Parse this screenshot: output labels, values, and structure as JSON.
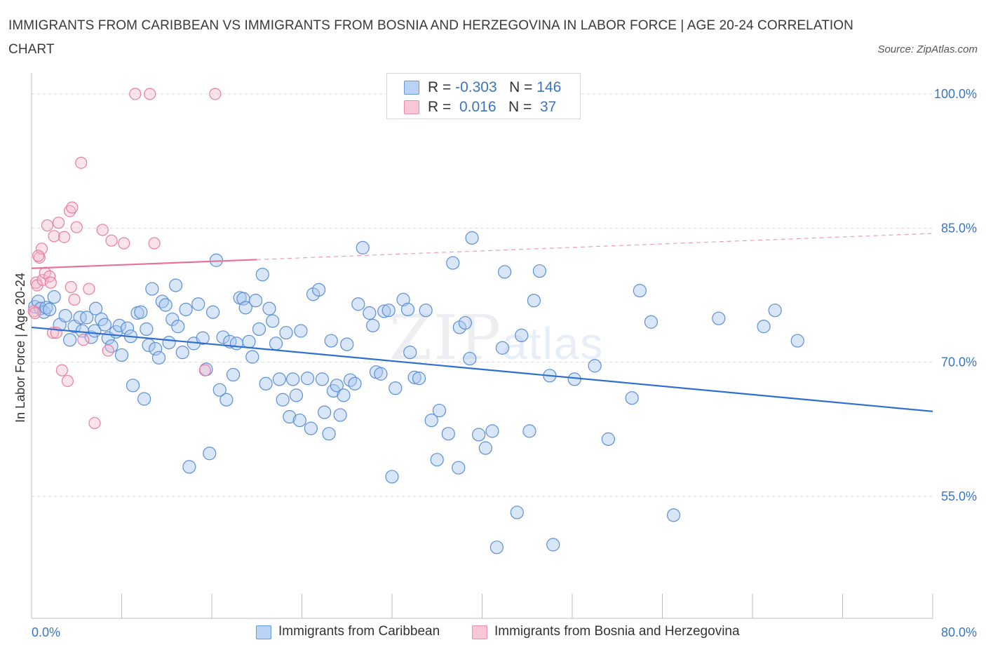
{
  "title": "IMMIGRANTS FROM CARIBBEAN VS IMMIGRANTS FROM BOSNIA AND HERZEGOVINA IN LABOR FORCE | AGE 20-24 CORRELATION CHART",
  "source": "Source: ZipAtlas.com",
  "watermark": {
    "zip": "ZIP",
    "atlas": "atlas"
  },
  "legend_top": {
    "rows": [
      {
        "r_label": "R =",
        "r_value": "-0.303",
        "n_label": "N =",
        "n_value": "146"
      },
      {
        "r_label": "R =",
        "r_value": " 0.016",
        "n_label": "N =",
        "n_value": " 37"
      }
    ]
  },
  "legend_bottom": {
    "items": [
      {
        "label": "Immigrants from Caribbean"
      },
      {
        "label": "Immigrants from Bosnia and Herzegovina"
      }
    ]
  },
  "colors": {
    "blue_fill": "#a9c8f0",
    "blue_stroke": "#5b8fd6",
    "blue_line": "#2f6fcf",
    "pink_fill": "#f5b8cb",
    "pink_stroke": "#e87ea0",
    "pink_line": "#e8739a",
    "grid": "#d9d9d9",
    "tick_text": "#3a75c4"
  },
  "chart_data": {
    "type": "scatter",
    "title": "IMMIGRANTS FROM CARIBBEAN VS IMMIGRANTS FROM BOSNIA AND HERZEGOVINA IN LABOR FORCE | AGE 20-24 CORRELATION CHART",
    "xlabel": "",
    "ylabel": "In Labor Force | Age 20-24",
    "xlim": [
      0,
      80
    ],
    "ylim": [
      40,
      100
    ],
    "x_tick_labels": [
      "0.0%",
      "80.0%"
    ],
    "y_ticks": [
      55,
      70,
      85,
      100
    ],
    "y_tick_labels": [
      "55.0%",
      "70.0%",
      "85.0%",
      "100.0%"
    ],
    "grid": true,
    "legend_position": "top-center",
    "series": [
      {
        "name": "Immigrants from Caribbean",
        "color": "#a9c8f0",
        "R": -0.303,
        "N": 146,
        "trend": {
          "x": [
            0,
            80
          ],
          "y": [
            73.9,
            64.5
          ],
          "dashed_from": null
        },
        "points": [
          [
            0.3,
            76.2
          ],
          [
            0.6,
            76.8
          ],
          [
            0.8,
            76.0
          ],
          [
            1.1,
            75.6
          ],
          [
            1.3,
            76.1
          ],
          [
            1.6,
            75.9
          ],
          [
            2.0,
            77.3
          ],
          [
            2.5,
            74.2
          ],
          [
            3.0,
            75.2
          ],
          [
            3.4,
            72.5
          ],
          [
            3.8,
            74.0
          ],
          [
            4.3,
            75.0
          ],
          [
            4.5,
            73.5
          ],
          [
            4.9,
            75.0
          ],
          [
            5.3,
            72.8
          ],
          [
            5.6,
            73.5
          ],
          [
            5.7,
            76.0
          ],
          [
            6.2,
            74.8
          ],
          [
            6.5,
            74.2
          ],
          [
            6.8,
            72.7
          ],
          [
            7.1,
            71.8
          ],
          [
            7.5,
            73.4
          ],
          [
            7.8,
            74.1
          ],
          [
            8.0,
            70.8
          ],
          [
            8.5,
            73.8
          ],
          [
            8.8,
            72.9
          ],
          [
            9.0,
            67.4
          ],
          [
            9.4,
            75.5
          ],
          [
            9.7,
            75.6
          ],
          [
            10.0,
            65.9
          ],
          [
            10.2,
            73.7
          ],
          [
            10.4,
            71.9
          ],
          [
            10.7,
            78.2
          ],
          [
            11.0,
            71.5
          ],
          [
            11.3,
            70.5
          ],
          [
            11.6,
            76.8
          ],
          [
            11.9,
            76.4
          ],
          [
            12.2,
            72.2
          ],
          [
            12.5,
            74.8
          ],
          [
            12.8,
            78.6
          ],
          [
            13.0,
            74.0
          ],
          [
            13.4,
            71.1
          ],
          [
            13.7,
            75.9
          ],
          [
            14.0,
            58.3
          ],
          [
            14.4,
            72.1
          ],
          [
            14.8,
            76.5
          ],
          [
            15.2,
            72.7
          ],
          [
            15.5,
            69.2
          ],
          [
            15.8,
            59.8
          ],
          [
            16.1,
            75.6
          ],
          [
            16.4,
            81.4
          ],
          [
            16.7,
            66.9
          ],
          [
            17.0,
            72.8
          ],
          [
            17.3,
            65.8
          ],
          [
            17.6,
            72.3
          ],
          [
            17.9,
            68.6
          ],
          [
            18.2,
            72.1
          ],
          [
            18.5,
            77.2
          ],
          [
            18.8,
            77.1
          ],
          [
            19.0,
            76.1
          ],
          [
            19.3,
            72.3
          ],
          [
            19.6,
            70.6
          ],
          [
            19.9,
            76.9
          ],
          [
            20.2,
            73.7
          ],
          [
            20.5,
            79.8
          ],
          [
            20.8,
            67.6
          ],
          [
            21.1,
            76.0
          ],
          [
            21.4,
            74.6
          ],
          [
            21.7,
            72.1
          ],
          [
            22.0,
            68.1
          ],
          [
            22.3,
            65.8
          ],
          [
            22.6,
            73.3
          ],
          [
            22.9,
            63.9
          ],
          [
            23.2,
            68.1
          ],
          [
            23.5,
            66.3
          ],
          [
            23.8,
            63.5
          ],
          [
            23.9,
            73.5
          ],
          [
            24.5,
            68.2
          ],
          [
            24.8,
            62.6
          ],
          [
            25.0,
            77.6
          ],
          [
            25.5,
            78.1
          ],
          [
            25.8,
            68.1
          ],
          [
            26.0,
            64.4
          ],
          [
            26.4,
            62.0
          ],
          [
            26.6,
            72.4
          ],
          [
            26.8,
            66.8
          ],
          [
            27.1,
            67.4
          ],
          [
            27.4,
            64.1
          ],
          [
            27.7,
            66.3
          ],
          [
            28.0,
            72.0
          ],
          [
            28.3,
            68.0
          ],
          [
            28.7,
            67.6
          ],
          [
            29.0,
            76.5
          ],
          [
            29.4,
            82.8
          ],
          [
            30.0,
            75.5
          ],
          [
            30.3,
            74.1
          ],
          [
            30.6,
            68.9
          ],
          [
            31.0,
            68.7
          ],
          [
            31.3,
            75.7
          ],
          [
            31.7,
            75.8
          ],
          [
            32.0,
            57.2
          ],
          [
            32.3,
            67.1
          ],
          [
            33.0,
            77.0
          ],
          [
            33.4,
            75.9
          ],
          [
            33.6,
            71.1
          ],
          [
            34.0,
            68.3
          ],
          [
            34.4,
            68.2
          ],
          [
            35.0,
            75.8
          ],
          [
            35.5,
            63.5
          ],
          [
            36.0,
            59.1
          ],
          [
            36.2,
            64.6
          ],
          [
            37.0,
            62.0
          ],
          [
            37.4,
            81.1
          ],
          [
            37.9,
            58.2
          ],
          [
            38.0,
            73.9
          ],
          [
            38.5,
            74.4
          ],
          [
            38.9,
            70.4
          ],
          [
            39.1,
            83.9
          ],
          [
            39.7,
            61.9
          ],
          [
            40.3,
            60.4
          ],
          [
            40.9,
            62.3
          ],
          [
            41.3,
            49.3
          ],
          [
            41.8,
            71.6
          ],
          [
            42.0,
            80.1
          ],
          [
            43.1,
            53.2
          ],
          [
            43.5,
            73.0
          ],
          [
            44.2,
            62.3
          ],
          [
            44.6,
            76.9
          ],
          [
            45.1,
            80.2
          ],
          [
            46.0,
            68.5
          ],
          [
            46.3,
            49.6
          ],
          [
            48.2,
            68.1
          ],
          [
            50.0,
            69.6
          ],
          [
            51.2,
            61.4
          ],
          [
            53.3,
            66.0
          ],
          [
            54.0,
            78.0
          ],
          [
            55.0,
            74.5
          ],
          [
            57.0,
            52.9
          ],
          [
            61.0,
            74.9
          ],
          [
            65.0,
            74.0
          ],
          [
            66.0,
            75.8
          ],
          [
            68.0,
            72.4
          ]
        ]
      },
      {
        "name": "Immigrants from Bosnia and Herzegovina",
        "color": "#f5b8cb",
        "R": 0.016,
        "N": 37,
        "trend": {
          "x": [
            0,
            80
          ],
          "y": [
            80.5,
            84.4
          ],
          "dashed_from": 20
        },
        "points": [
          [
            0.2,
            75.7
          ],
          [
            0.3,
            75.5
          ],
          [
            0.4,
            78.9
          ],
          [
            0.5,
            78.6
          ],
          [
            0.7,
            81.7
          ],
          [
            0.9,
            82.7
          ],
          [
            1.0,
            79.2
          ],
          [
            1.2,
            80.0
          ],
          [
            1.4,
            85.3
          ],
          [
            1.6,
            79.6
          ],
          [
            1.9,
            73.3
          ],
          [
            2.0,
            84.1
          ],
          [
            2.2,
            73.3
          ],
          [
            2.4,
            85.6
          ],
          [
            2.7,
            69.1
          ],
          [
            2.9,
            84.0
          ],
          [
            3.2,
            67.9
          ],
          [
            3.4,
            86.9
          ],
          [
            3.6,
            87.3
          ],
          [
            3.8,
            77.0
          ],
          [
            4.0,
            85.1
          ],
          [
            4.4,
            92.3
          ],
          [
            4.6,
            72.5
          ],
          [
            5.1,
            78.2
          ],
          [
            5.6,
            63.2
          ],
          [
            6.3,
            84.8
          ],
          [
            6.8,
            71.3
          ],
          [
            7.1,
            83.6
          ],
          [
            8.2,
            83.3
          ],
          [
            10.5,
            100.0
          ],
          [
            10.9,
            83.3
          ],
          [
            15.4,
            69.1
          ],
          [
            16.3,
            100.0
          ],
          [
            1.7,
            78.9
          ],
          [
            3.5,
            78.4
          ],
          [
            9.2,
            100.0
          ],
          [
            0.6,
            81.9
          ]
        ]
      }
    ]
  }
}
